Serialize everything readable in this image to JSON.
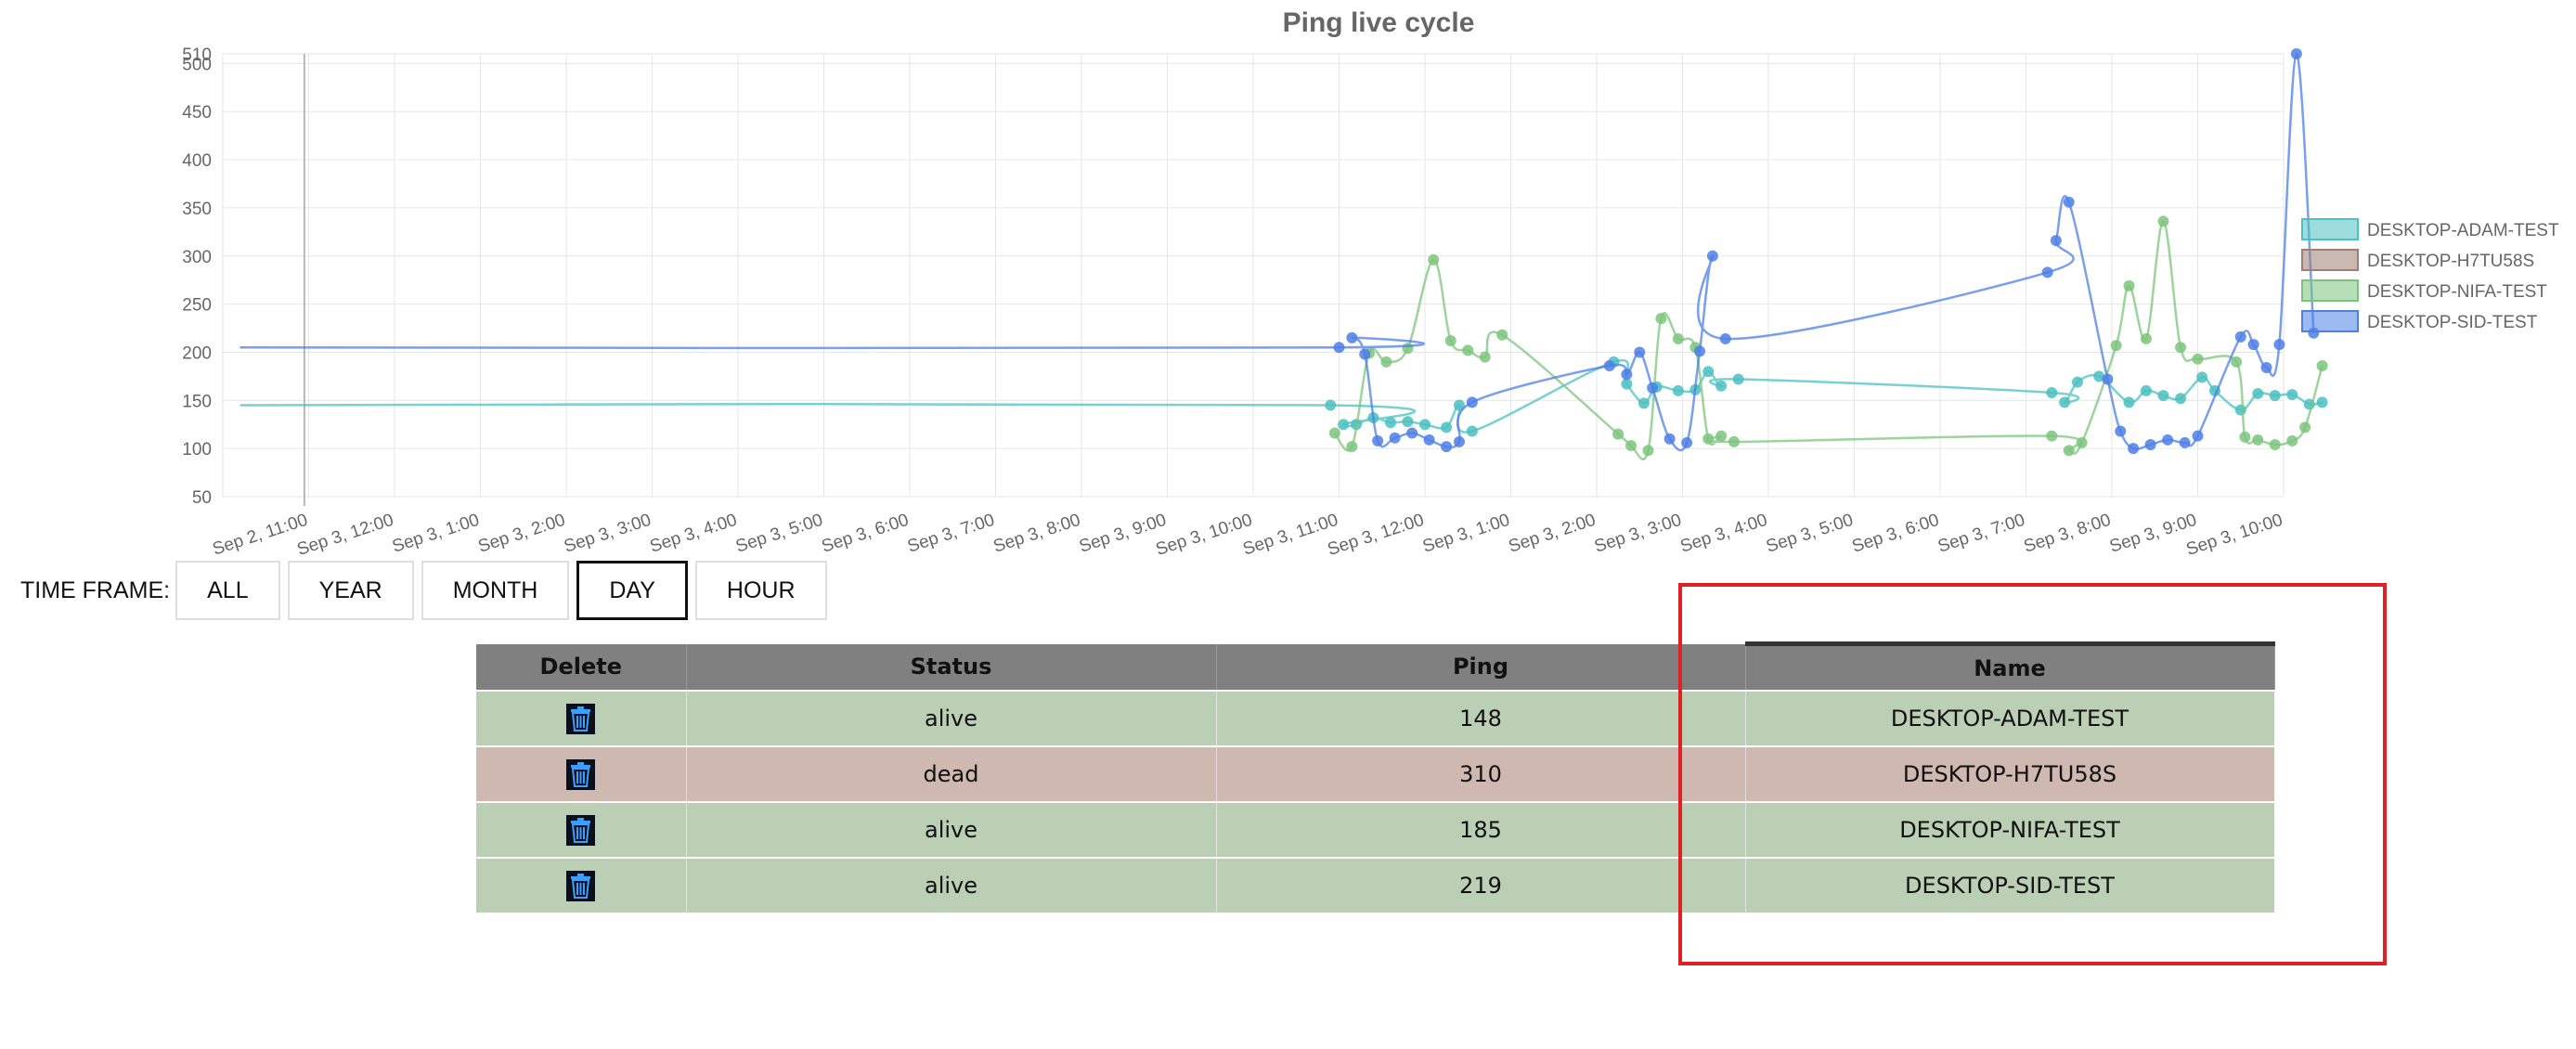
{
  "chart_data": {
    "type": "line",
    "title": "Ping live cycle",
    "y_ticks": [
      "50",
      "100",
      "150",
      "200",
      "250",
      "300",
      "350",
      "400",
      "450",
      "500",
      "510"
    ],
    "x_ticks": [
      "Sep 2, 11:00",
      "Sep 3, 12:00",
      "Sep 3, 1:00",
      "Sep 3, 2:00",
      "Sep 3, 3:00",
      "Sep 3, 4:00",
      "Sep 3, 5:00",
      "Sep 3, 6:00",
      "Sep 3, 7:00",
      "Sep 3, 8:00",
      "Sep 3, 9:00",
      "Sep 3, 10:00",
      "Sep 3, 11:00",
      "Sep 3, 12:00",
      "Sep 3, 1:00",
      "Sep 3, 2:00",
      "Sep 3, 3:00",
      "Sep 3, 4:00",
      "Sep 3, 5:00",
      "Sep 3, 6:00",
      "Sep 3, 7:00",
      "Sep 3, 8:00",
      "Sep 3, 9:00",
      "Sep 3, 10:00"
    ],
    "ylim": [
      50,
      510
    ],
    "grid": true,
    "legend_position": "right",
    "series": [
      {
        "name": "DESKTOP-ADAM-TEST",
        "color": "#4bc0c0",
        "points": [
          [
            -0.3,
            145
          ],
          [
            12.4,
            145
          ],
          [
            12.55,
            125
          ],
          [
            12.7,
            125
          ],
          [
            12.9,
            132
          ],
          [
            13.1,
            127
          ],
          [
            13.3,
            128
          ],
          [
            13.5,
            125
          ],
          [
            13.75,
            122
          ],
          [
            13.9,
            145
          ],
          [
            14.05,
            118
          ],
          [
            15.7,
            190
          ],
          [
            15.85,
            167
          ],
          [
            16.05,
            147
          ],
          [
            16.2,
            164
          ],
          [
            16.45,
            160
          ],
          [
            16.65,
            161
          ],
          [
            16.8,
            180
          ],
          [
            16.95,
            165
          ],
          [
            17.15,
            172
          ],
          [
            20.8,
            158
          ],
          [
            20.95,
            148
          ],
          [
            21.1,
            169
          ],
          [
            21.35,
            175
          ],
          [
            21.7,
            148
          ],
          [
            21.9,
            160
          ],
          [
            22.1,
            155
          ],
          [
            22.3,
            152
          ],
          [
            22.55,
            174
          ],
          [
            22.7,
            160
          ],
          [
            23.0,
            140
          ],
          [
            23.2,
            157
          ],
          [
            23.4,
            155
          ],
          [
            23.6,
            156
          ],
          [
            23.8,
            146
          ],
          [
            23.95,
            148
          ]
        ]
      },
      {
        "name": "DESKTOP-H7TU58S",
        "color": "#9e7f75",
        "points": []
      },
      {
        "name": "DESKTOP-NIFA-TEST",
        "color": "#7cc47c",
        "points": [
          [
            12.45,
            116
          ],
          [
            12.65,
            102
          ],
          [
            12.85,
            199
          ],
          [
            13.05,
            190
          ],
          [
            13.3,
            204
          ],
          [
            13.6,
            296
          ],
          [
            13.8,
            212
          ],
          [
            14.0,
            202
          ],
          [
            14.2,
            195
          ],
          [
            14.4,
            218
          ],
          [
            15.75,
            115
          ],
          [
            15.9,
            103
          ],
          [
            16.1,
            98
          ],
          [
            16.25,
            235
          ],
          [
            16.45,
            214
          ],
          [
            16.65,
            205
          ],
          [
            16.8,
            110
          ],
          [
            16.95,
            113
          ],
          [
            17.1,
            107
          ],
          [
            20.8,
            113
          ],
          [
            21.0,
            98
          ],
          [
            21.15,
            106
          ],
          [
            21.55,
            207
          ],
          [
            21.7,
            269
          ],
          [
            21.9,
            214
          ],
          [
            22.1,
            336
          ],
          [
            22.3,
            205
          ],
          [
            22.5,
            193
          ],
          [
            22.95,
            190
          ],
          [
            23.05,
            112
          ],
          [
            23.2,
            109
          ],
          [
            23.4,
            104
          ],
          [
            23.6,
            108
          ],
          [
            23.75,
            122
          ],
          [
            23.95,
            186
          ]
        ]
      },
      {
        "name": "DESKTOP-SID-TEST",
        "color": "#4d7fe6",
        "points": [
          [
            -0.3,
            205
          ],
          [
            12.5,
            205
          ],
          [
            12.65,
            215
          ],
          [
            12.8,
            198
          ],
          [
            12.95,
            108
          ],
          [
            13.15,
            111
          ],
          [
            13.35,
            116
          ],
          [
            13.55,
            109
          ],
          [
            13.75,
            102
          ],
          [
            13.9,
            107
          ],
          [
            14.05,
            148
          ],
          [
            15.65,
            186
          ],
          [
            15.85,
            177
          ],
          [
            16.0,
            200
          ],
          [
            16.15,
            163
          ],
          [
            16.35,
            110
          ],
          [
            16.55,
            106
          ],
          [
            16.7,
            201
          ],
          [
            16.85,
            300
          ],
          [
            17.0,
            214
          ],
          [
            20.75,
            283
          ],
          [
            20.85,
            316
          ],
          [
            21.0,
            356
          ],
          [
            21.45,
            172
          ],
          [
            21.6,
            118
          ],
          [
            21.75,
            100
          ],
          [
            21.95,
            104
          ],
          [
            22.15,
            109
          ],
          [
            22.35,
            106
          ],
          [
            22.5,
            113
          ],
          [
            23.0,
            216
          ],
          [
            23.15,
            208
          ],
          [
            23.3,
            184
          ],
          [
            23.45,
            208
          ],
          [
            23.65,
            510
          ],
          [
            23.85,
            220
          ]
        ]
      }
    ]
  },
  "controls": {
    "time_frame_label": "TIME FRAME:",
    "buttons": [
      "ALL",
      "YEAR",
      "MONTH",
      "DAY",
      "HOUR"
    ],
    "active": "DAY"
  },
  "table": {
    "columns": [
      "Delete",
      "Status",
      "Ping",
      "Name"
    ],
    "rows": [
      {
        "status": "alive",
        "ping": "148",
        "name": "DESKTOP-ADAM-TEST"
      },
      {
        "status": "dead",
        "ping": "310",
        "name": "DESKTOP-H7TU58S"
      },
      {
        "status": "alive",
        "ping": "185",
        "name": "DESKTOP-NIFA-TEST"
      },
      {
        "status": "alive",
        "ping": "219",
        "name": "DESKTOP-SID-TEST"
      }
    ],
    "row_colors": {
      "alive": "#bbcfb4",
      "dead": "#cfb8b0"
    },
    "delete_icon": "trash-icon"
  }
}
